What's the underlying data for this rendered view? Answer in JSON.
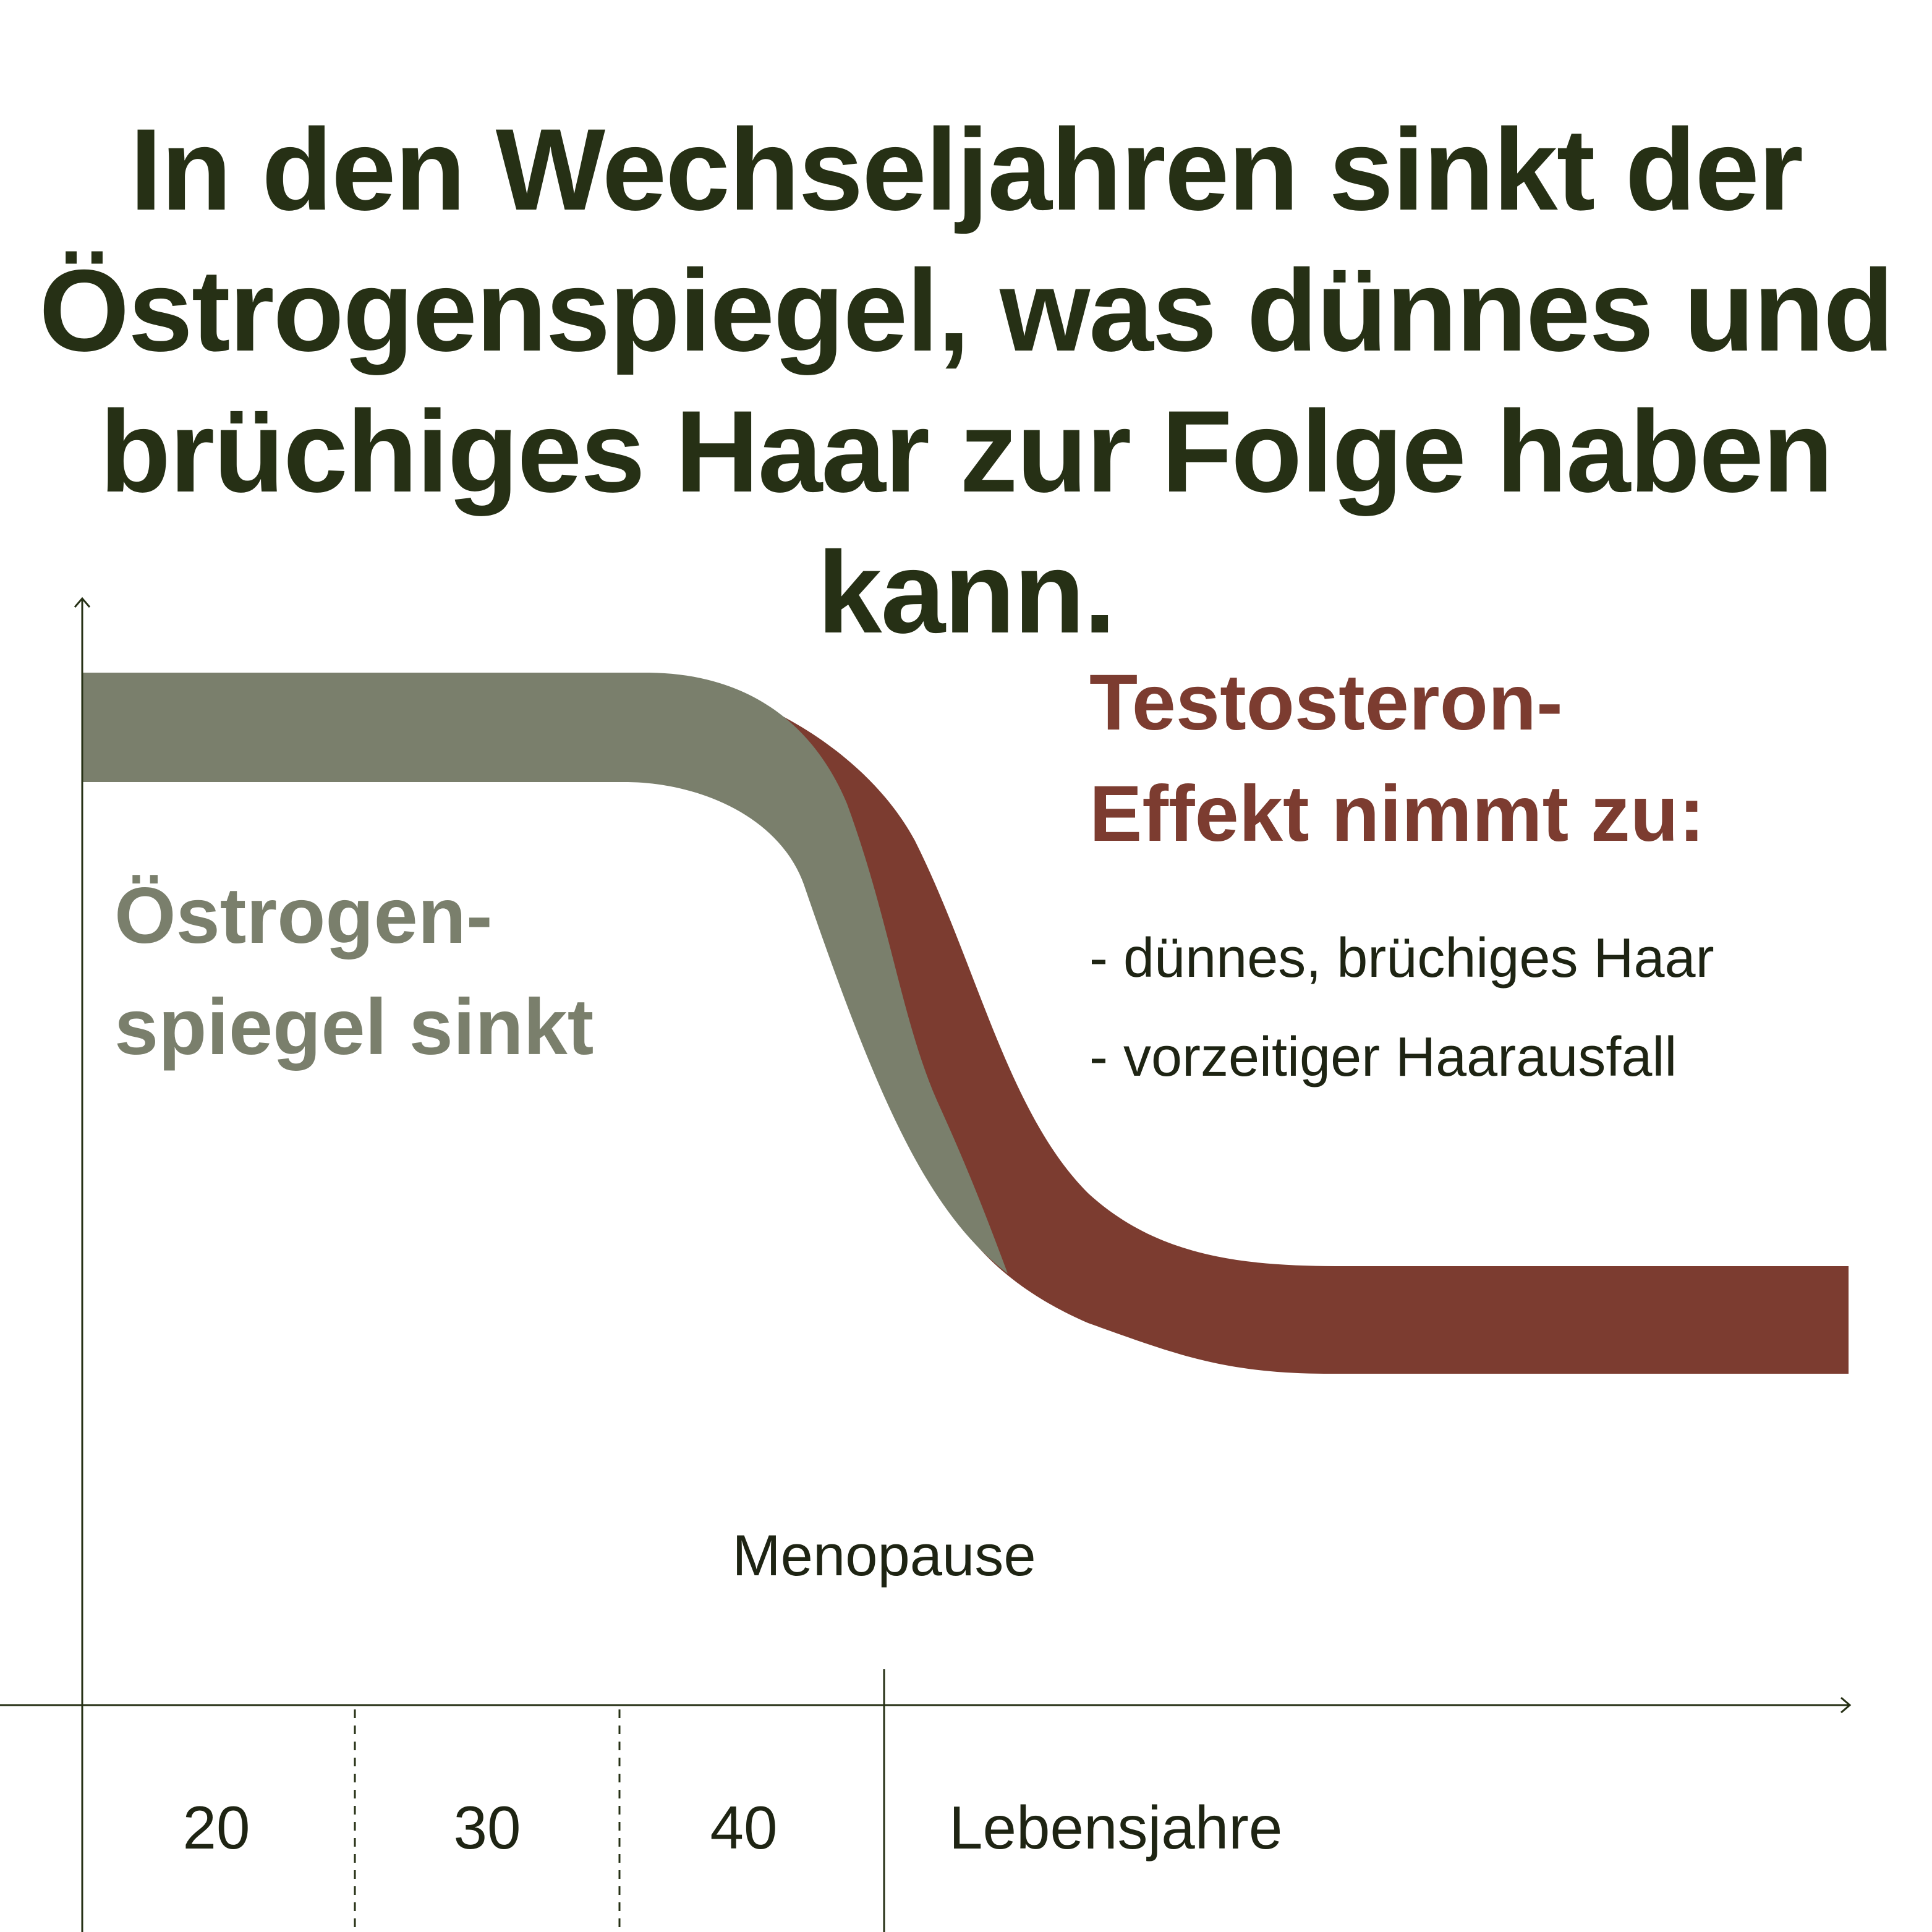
{
  "title": {
    "lines": [
      "In den Wechseljahren sinkt der",
      "Östrogenspiegel, was dünnes und",
      "brüchiges Haar zur Folge haben kann."
    ]
  },
  "colors": {
    "title_text": "#263015",
    "estrogen_band": "#7a7f6c",
    "testosterone_band": "#7c3c30",
    "axis": "#263015",
    "body_text": "#1e2413"
  },
  "estrogen_label": {
    "line1": "Östrogen-",
    "line2": "spiegel sinkt"
  },
  "testosterone_label": {
    "line1": "Testosteron-",
    "line2": "Effekt nimmt zu:"
  },
  "effects": [
    "- dünnes, brüchiges Haar",
    "- vorzeitiger Haarausfall"
  ],
  "axis": {
    "event_label": "Menopause",
    "ticks": [
      "20",
      "30",
      "40"
    ],
    "x_label": "Lebensjahre"
  }
}
